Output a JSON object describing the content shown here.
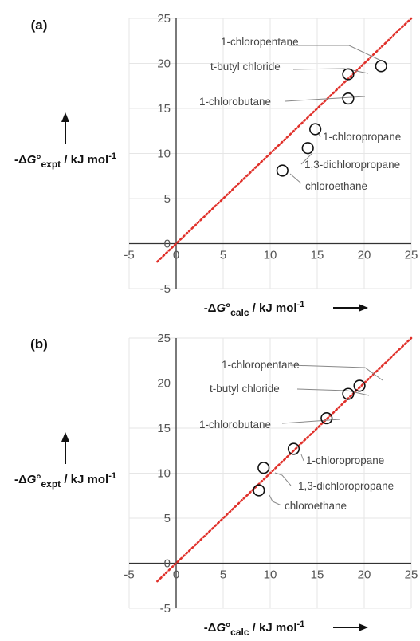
{
  "figure": {
    "panels": [
      {
        "label": "(a)"
      },
      {
        "label": "(b)"
      }
    ],
    "y_axis_title": {
      "prefix": "-Δ",
      "symbol": "G",
      "degree": "°",
      "subscript": "expt",
      "units": " / kJ mol",
      "unit_sup": "-1"
    },
    "x_axis_title": {
      "prefix": "-Δ",
      "symbol": "G",
      "degree": "°",
      "subscript": "calc",
      "units": " / kJ mol",
      "unit_sup": "-1"
    },
    "arrow_icons": [
      "arrow-up-icon",
      "arrow-right-icon"
    ]
  },
  "chart_data": [
    {
      "type": "scatter",
      "panel": "(a)",
      "xlim": [
        -5,
        25
      ],
      "ylim": [
        -5,
        25
      ],
      "xticks": [
        "-5",
        "0",
        "5",
        "10",
        "15",
        "20",
        "25"
      ],
      "yticks": [
        "-5",
        "0",
        "5",
        "10",
        "15",
        "20",
        "25"
      ],
      "grid": true,
      "reference_line": {
        "style": "dotted",
        "color": "#e0302a",
        "x": [
          -2,
          25
        ],
        "y": [
          -2,
          25
        ]
      },
      "points": [
        {
          "label": "1-chloropentane",
          "x": 21.8,
          "y": 19.7
        },
        {
          "label": "t-butyl chloride",
          "x": 18.3,
          "y": 18.8
        },
        {
          "label": "1-chlorobutane",
          "x": 18.3,
          "y": 16.1
        },
        {
          "label": "1-chloropropane",
          "x": 14.8,
          "y": 12.7
        },
        {
          "label": "1,3-dichloropropane",
          "x": 14.0,
          "y": 10.6
        },
        {
          "label": "chloroethane",
          "x": 11.3,
          "y": 8.1
        }
      ]
    },
    {
      "type": "scatter",
      "panel": "(b)",
      "xlim": [
        -5,
        25
      ],
      "ylim": [
        -5,
        25
      ],
      "xticks": [
        "-5",
        "0",
        "5",
        "10",
        "15",
        "20",
        "25"
      ],
      "yticks": [
        "-5",
        "0",
        "5",
        "10",
        "15",
        "20",
        "25"
      ],
      "grid": true,
      "reference_line": {
        "style": "dotted",
        "color": "#e0302a",
        "x": [
          -2,
          25
        ],
        "y": [
          -2,
          25
        ]
      },
      "points": [
        {
          "label": "1-chloropentane",
          "x": 19.5,
          "y": 19.7
        },
        {
          "label": "t-butyl chloride",
          "x": 18.3,
          "y": 18.8
        },
        {
          "label": "1-chlorobutane",
          "x": 16.0,
          "y": 16.1
        },
        {
          "label": "1-chloropropane",
          "x": 12.5,
          "y": 12.7
        },
        {
          "label": "1,3-dichloropropane",
          "x": 9.3,
          "y": 10.6
        },
        {
          "label": "chloroethane",
          "x": 8.8,
          "y": 8.1
        }
      ]
    }
  ]
}
